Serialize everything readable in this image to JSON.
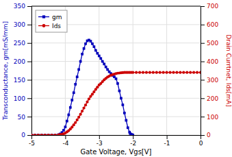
{
  "chart_data": {
    "type": "line",
    "xlabel": "Gate Voltage, Vgs[V]",
    "ylabel": "Transconductance, gm[mS/mm]",
    "y2label": "Drain Currtnet, Ids[mA]",
    "xlim": [
      -5,
      0
    ],
    "ylim": [
      0,
      350
    ],
    "y2lim": [
      0,
      700
    ],
    "xticks": [
      -5,
      -4,
      -3,
      -2,
      -1,
      0
    ],
    "yticks": [
      0,
      50,
      100,
      150,
      200,
      250,
      300,
      350
    ],
    "y2ticks": [
      0,
      100,
      200,
      300,
      400,
      500,
      600,
      700
    ],
    "grid": true,
    "legend": "upper left",
    "series": [
      {
        "name": "gm",
        "color": "#0000bb",
        "marker": "square",
        "axis": "y",
        "x": [
          -5.0,
          -4.9,
          -4.8,
          -4.7,
          -4.6,
          -4.5,
          -4.4,
          -4.3,
          -4.2,
          -4.15,
          -4.1,
          -4.05,
          -4.0,
          -3.95,
          -3.9,
          -3.85,
          -3.8,
          -3.75,
          -3.7,
          -3.65,
          -3.6,
          -3.55,
          -3.5,
          -3.45,
          -3.4,
          -3.35,
          -3.3,
          -3.25,
          -3.2,
          -3.15,
          -3.1,
          -3.05,
          -3.0,
          -2.95,
          -2.9,
          -2.85,
          -2.8,
          -2.75,
          -2.7,
          -2.65,
          -2.6,
          -2.55,
          -2.5,
          -2.45,
          -2.4,
          -2.35,
          -2.3,
          -2.25,
          -2.2,
          -2.15,
          -2.1,
          -2.08,
          -2.05,
          -2.02,
          -2.0
        ],
        "values": [
          0,
          0,
          0,
          0,
          0,
          0,
          0,
          0,
          1,
          3,
          7,
          13,
          22,
          38,
          55,
          75,
          95,
          115,
          138,
          158,
          178,
          200,
          220,
          235,
          248,
          256,
          258,
          255,
          248,
          240,
          230,
          222,
          215,
          208,
          200,
          193,
          185,
          178,
          172,
          167,
          162,
          158,
          153,
          140,
          120,
          100,
          82,
          60,
          40,
          20,
          8,
          4,
          2,
          1,
          0
        ]
      },
      {
        "name": "Ids",
        "color": "#cc0000",
        "marker": "circle",
        "axis": "y2",
        "x": [
          -5.0,
          -4.9,
          -4.8,
          -4.7,
          -4.6,
          -4.5,
          -4.4,
          -4.3,
          -4.2,
          -4.15,
          -4.1,
          -4.05,
          -4.0,
          -3.95,
          -3.9,
          -3.85,
          -3.8,
          -3.75,
          -3.7,
          -3.65,
          -3.6,
          -3.55,
          -3.5,
          -3.45,
          -3.4,
          -3.35,
          -3.3,
          -3.25,
          -3.2,
          -3.15,
          -3.1,
          -3.05,
          -3.0,
          -2.95,
          -2.9,
          -2.85,
          -2.8,
          -2.75,
          -2.7,
          -2.65,
          -2.6,
          -2.55,
          -2.5,
          -2.45,
          -2.4,
          -2.35,
          -2.3,
          -2.25,
          -2.2,
          -2.15,
          -2.1,
          -2.05,
          -2.0,
          -1.9,
          -1.8,
          -1.7,
          -1.6,
          -1.5,
          -1.4,
          -1.3,
          -1.2,
          -1.1,
          -1.0,
          -0.9,
          -0.8,
          -0.7,
          -0.6,
          -0.5,
          -0.4,
          -0.3,
          -0.2,
          -0.1,
          0.0
        ],
        "values": [
          0,
          0,
          0,
          0,
          0,
          0,
          0,
          0,
          1,
          2,
          4,
          7,
          11,
          17,
          24,
          33,
          43,
          55,
          68,
          82,
          97,
          113,
          130,
          147,
          163,
          180,
          196,
          210,
          222,
          235,
          248,
          260,
          272,
          280,
          290,
          300,
          308,
          315,
          320,
          325,
          328,
          331,
          334,
          336,
          337,
          338,
          339,
          340,
          340,
          340,
          340,
          340,
          340,
          340,
          340,
          340,
          340,
          340,
          340,
          340,
          340,
          340,
          340,
          340,
          340,
          340,
          340,
          340,
          340,
          340,
          340,
          340,
          340
        ]
      }
    ]
  }
}
